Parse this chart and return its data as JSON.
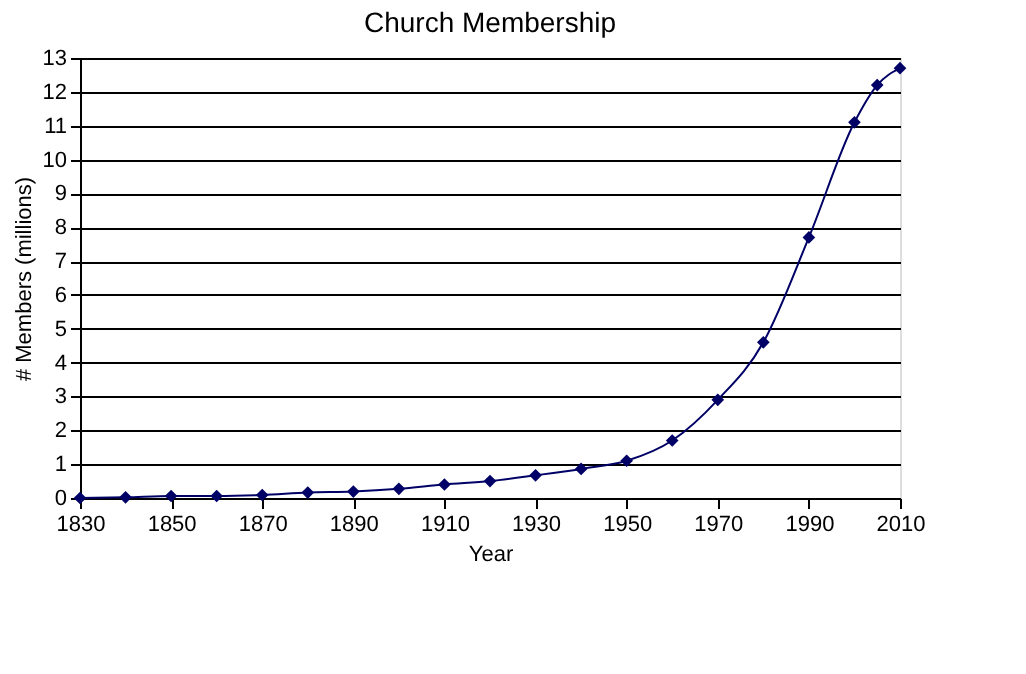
{
  "chart_data": {
    "type": "line",
    "title": "Church Membership",
    "xlabel": "Year",
    "ylabel": "# Members (millions)",
    "x": [
      1830,
      1840,
      1850,
      1860,
      1870,
      1880,
      1890,
      1900,
      1910,
      1920,
      1930,
      1940,
      1950,
      1960,
      1970,
      1980,
      1990,
      2000,
      2005,
      2010
    ],
    "series": [
      {
        "color": "#000066",
        "values": [
          0,
          0.02,
          0.06,
          0.06,
          0.09,
          0.16,
          0.19,
          0.27,
          0.4,
          0.5,
          0.67,
          0.86,
          1.1,
          1.7,
          2.9,
          4.6,
          7.7,
          11.1,
          12.2,
          12.7
        ]
      }
    ],
    "xlim": [
      1830,
      2010
    ],
    "xticks": [
      1830,
      1850,
      1870,
      1890,
      1910,
      1930,
      1950,
      1970,
      1990,
      2010
    ],
    "ylim": [
      0,
      13
    ],
    "yticks": [
      0,
      1,
      2,
      3,
      4,
      5,
      6,
      7,
      8,
      9,
      10,
      11,
      12,
      13
    ],
    "grid": "y",
    "marker": "diamond",
    "line_style": "solid"
  }
}
